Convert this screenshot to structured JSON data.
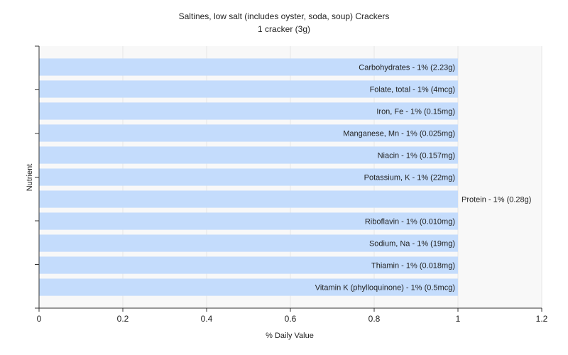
{
  "chart_data": {
    "type": "bar",
    "orientation": "horizontal",
    "title": "Saltines, low salt (includes oyster, soda, soup) Crackers",
    "subtitle": "1 cracker (3g)",
    "xlabel": "% Daily Value",
    "ylabel": "Nutrient",
    "xlim": [
      0,
      1.2
    ],
    "xticks": [
      "0",
      "0.2",
      "0.4",
      "0.6",
      "0.8",
      "1",
      "1.2"
    ],
    "grid": true,
    "bar_color": "#c4dcfc",
    "categories": [
      "Carbohydrates",
      "Folate, total",
      "Iron, Fe",
      "Manganese, Mn",
      "Niacin",
      "Potassium, K",
      "Protein",
      "Riboflavin",
      "Sodium, Na",
      "Thiamin",
      "Vitamin K (phylloquinone)"
    ],
    "values": [
      1,
      1,
      1,
      1,
      1,
      1,
      1,
      1,
      1,
      1,
      1
    ],
    "labels": [
      "Carbohydrates - 1% (2.23g)",
      "Folate, total - 1% (4mcg)",
      "Iron, Fe - 1% (0.15mg)",
      "Manganese, Mn - 1% (0.025mg)",
      "Niacin - 1% (0.157mg)",
      "Potassium, K - 1% (22mg)",
      "Protein - 1% (0.28g)",
      "Riboflavin - 1% (0.010mg)",
      "Sodium, Na - 1% (19mg)",
      "Thiamin - 1% (0.018mg)",
      "Vitamin K (phylloquinone) - 1% (0.5mcg)"
    ],
    "label_outside": [
      false,
      false,
      false,
      false,
      false,
      false,
      true,
      false,
      false,
      false,
      false
    ]
  }
}
